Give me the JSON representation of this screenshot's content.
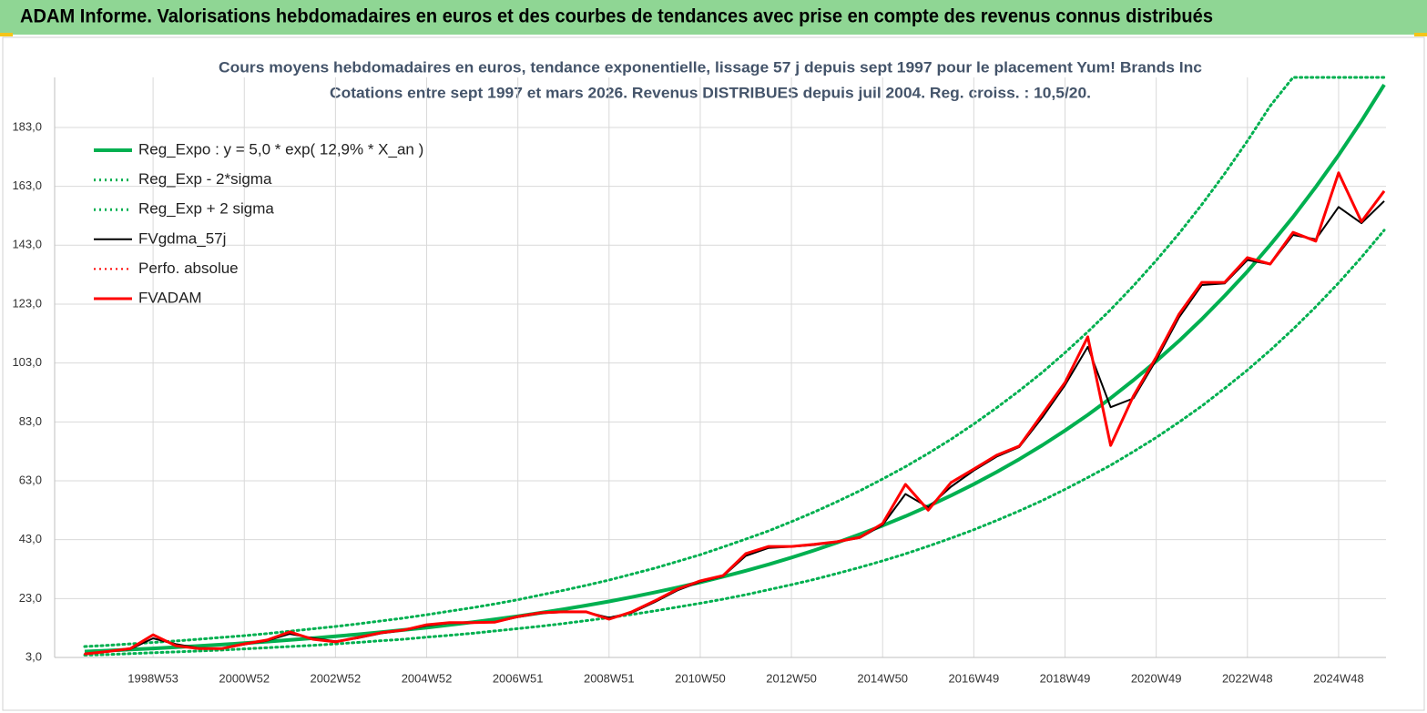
{
  "header": {
    "title": "ADAM Informe. Valorisations hebdomadaires en euros et des courbes de tendances avec prise en compte des revenus connus distribués"
  },
  "chart_data": {
    "type": "line",
    "title": "Cours moyens hebdomadaires en euros, tendance exponentielle, lissage 57 j depuis sept 1997 pour le placement Yum! Brands Inc",
    "subtitle": "Cotations entre sept 1997 et mars 2026. Revenus DISTRIBUES  depuis juil 2004. Reg. croiss. : 10,5/20.",
    "categories": [
      null,
      null,
      null,
      "1998W53",
      null,
      null,
      null,
      "2000W52",
      null,
      null,
      null,
      "2002W52",
      null,
      null,
      null,
      "2004W52",
      null,
      null,
      null,
      "2006W51",
      null,
      null,
      null,
      "2008W51",
      null,
      null,
      null,
      "2010W50",
      null,
      null,
      null,
      "2012W50",
      null,
      null,
      null,
      "2014W50",
      null,
      null,
      null,
      "2016W49",
      null,
      null,
      null,
      "2018W49",
      null,
      null,
      null,
      "2020W49",
      null,
      null,
      null,
      "2022W48",
      null,
      null,
      null,
      "2024W48",
      null,
      null
    ],
    "ylim": [
      3,
      200
    ],
    "yticks": [
      {
        "value": 3,
        "label": "3,0"
      },
      {
        "value": 23,
        "label": "23,0"
      },
      {
        "value": 43,
        "label": "43,0"
      },
      {
        "value": 63,
        "label": "63,0"
      },
      {
        "value": 83,
        "label": "83,0"
      },
      {
        "value": 103,
        "label": "103,0"
      },
      {
        "value": 123,
        "label": "123,0"
      },
      {
        "value": 143,
        "label": "143,0"
      },
      {
        "value": 163,
        "label": "163,0"
      },
      {
        "value": 183,
        "label": "183,0"
      }
    ],
    "grid": true,
    "legend": "upper left",
    "series": [
      {
        "name": "Reg_Expo : y = 5,0 * exp( 12,9% *  X_an )",
        "color": "#00b050",
        "style": "solid",
        "values": [
          5.0,
          5.33,
          5.69,
          6.07,
          6.47,
          6.9,
          7.36,
          7.85,
          8.38,
          8.93,
          9.53,
          10.16,
          10.84,
          11.56,
          12.33,
          13.15,
          14.03,
          14.96,
          15.96,
          17.02,
          18.16,
          19.37,
          20.66,
          22.03,
          23.5,
          25.07,
          26.74,
          28.52,
          30.42,
          32.45,
          34.61,
          36.92,
          39.38,
          42.0,
          44.8,
          47.79,
          50.97,
          54.37,
          57.99,
          61.86,
          65.98,
          70.37,
          75.06,
          80.07,
          85.4,
          91.09,
          97.16,
          103.6,
          110.5,
          117.9,
          125.8,
          134.1,
          143.1,
          152.6,
          162.8,
          173.6,
          185.2,
          197.5
        ]
      },
      {
        "name": "Reg_Exp - 2*sigma",
        "color": "#00b050",
        "style": "dotted",
        "values": [
          3.8,
          4.0,
          4.3,
          4.6,
          4.9,
          5.2,
          5.5,
          5.9,
          6.3,
          6.7,
          7.1,
          7.6,
          8.1,
          8.7,
          9.2,
          9.9,
          10.5,
          11.2,
          12.0,
          12.8,
          13.6,
          14.5,
          15.5,
          16.5,
          17.6,
          18.8,
          20.1,
          21.4,
          22.8,
          24.3,
          26.0,
          27.7,
          29.5,
          31.5,
          33.6,
          35.8,
          38.2,
          40.8,
          43.5,
          46.4,
          49.5,
          52.8,
          56.3,
          60.1,
          64.1,
          68.3,
          72.9,
          77.7,
          82.9,
          88.4,
          94.4,
          100.6,
          107.3,
          114.5,
          122.1,
          130.2,
          138.9,
          148.1
        ]
      },
      {
        "name": "Reg_Exp + 2 sigma",
        "color": "#00b050",
        "style": "dotted",
        "values": [
          6.7,
          7.1,
          7.6,
          8.1,
          8.6,
          9.2,
          9.8,
          10.4,
          11.1,
          11.9,
          12.7,
          13.5,
          14.4,
          15.4,
          16.4,
          17.5,
          18.7,
          19.9,
          21.2,
          22.6,
          24.2,
          25.8,
          27.5,
          29.3,
          31.3,
          33.3,
          35.6,
          37.9,
          40.5,
          43.2,
          46.0,
          49.1,
          52.4,
          55.9,
          59.6,
          63.6,
          67.8,
          72.3,
          77.1,
          82.3,
          87.8,
          93.6,
          99.8,
          106.5,
          113.6,
          121.1,
          129.2,
          137.8,
          147.0,
          156.8,
          167.3,
          178.4,
          190.3,
          200,
          200,
          200,
          200,
          200
        ]
      },
      {
        "name": "FVgdma_57j",
        "color": "#000000",
        "style": "solid",
        "values": [
          4.2,
          5,
          5.8,
          9.5,
          7.5,
          6.2,
          6,
          7.4,
          8.7,
          11,
          9.6,
          8.5,
          9.6,
          11.2,
          12.2,
          13.8,
          14.7,
          14.8,
          15,
          16.7,
          18,
          18.4,
          18.4,
          16.5,
          18.2,
          21.8,
          25.8,
          28.7,
          30.6,
          37.5,
          40.2,
          40.6,
          41.2,
          42.2,
          43.6,
          48,
          58.5,
          54,
          61,
          66.5,
          71.2,
          74.5,
          84.5,
          95.5,
          108.5,
          88,
          91,
          104,
          118.5,
          129.5,
          130,
          138,
          136.5,
          146.5,
          145,
          156,
          150.5,
          158
        ]
      },
      {
        "name": "Perfo. absolue",
        "color": "#ff0000",
        "style": "dotted",
        "values": [
          4.2,
          5,
          6,
          10.7,
          7,
          6,
          6,
          7.6,
          8.9,
          11.7,
          9.2,
          8.3,
          9.8,
          11.4,
          12.3,
          14.1,
          14.8,
          14.8,
          15,
          16.9,
          18.2,
          18.5,
          18.5,
          16,
          18.5,
          22.2,
          26.2,
          29,
          30.8,
          38.3,
          40.7,
          40.7,
          41.4,
          42.3,
          43.8,
          48.5,
          61.8,
          53,
          62.4,
          67,
          71.7,
          74.8,
          85.6,
          96.4,
          111.9,
          75,
          91.8,
          105,
          119.6,
          130.4,
          130.4,
          138.8,
          136.6,
          147.4,
          144.4,
          167.6,
          151,
          161.4
        ]
      },
      {
        "name": "FVADAM",
        "color": "#ff0000",
        "style": "solid",
        "values": [
          4.2,
          5,
          6,
          10.7,
          7,
          6,
          6,
          7.6,
          8.9,
          11.7,
          9.2,
          8.3,
          9.8,
          11.4,
          12.3,
          14.1,
          14.8,
          14.8,
          15,
          16.9,
          18.2,
          18.5,
          18.5,
          16,
          18.5,
          22.2,
          26.2,
          29,
          30.8,
          38.3,
          40.7,
          40.7,
          41.4,
          42.3,
          43.8,
          48.5,
          61.8,
          53,
          62.4,
          67,
          71.7,
          74.8,
          85.6,
          96.4,
          111.9,
          75,
          91.8,
          105,
          119.6,
          130.4,
          130.4,
          138.8,
          136.6,
          147.4,
          144.4,
          167.6,
          151,
          161.4
        ]
      }
    ]
  }
}
